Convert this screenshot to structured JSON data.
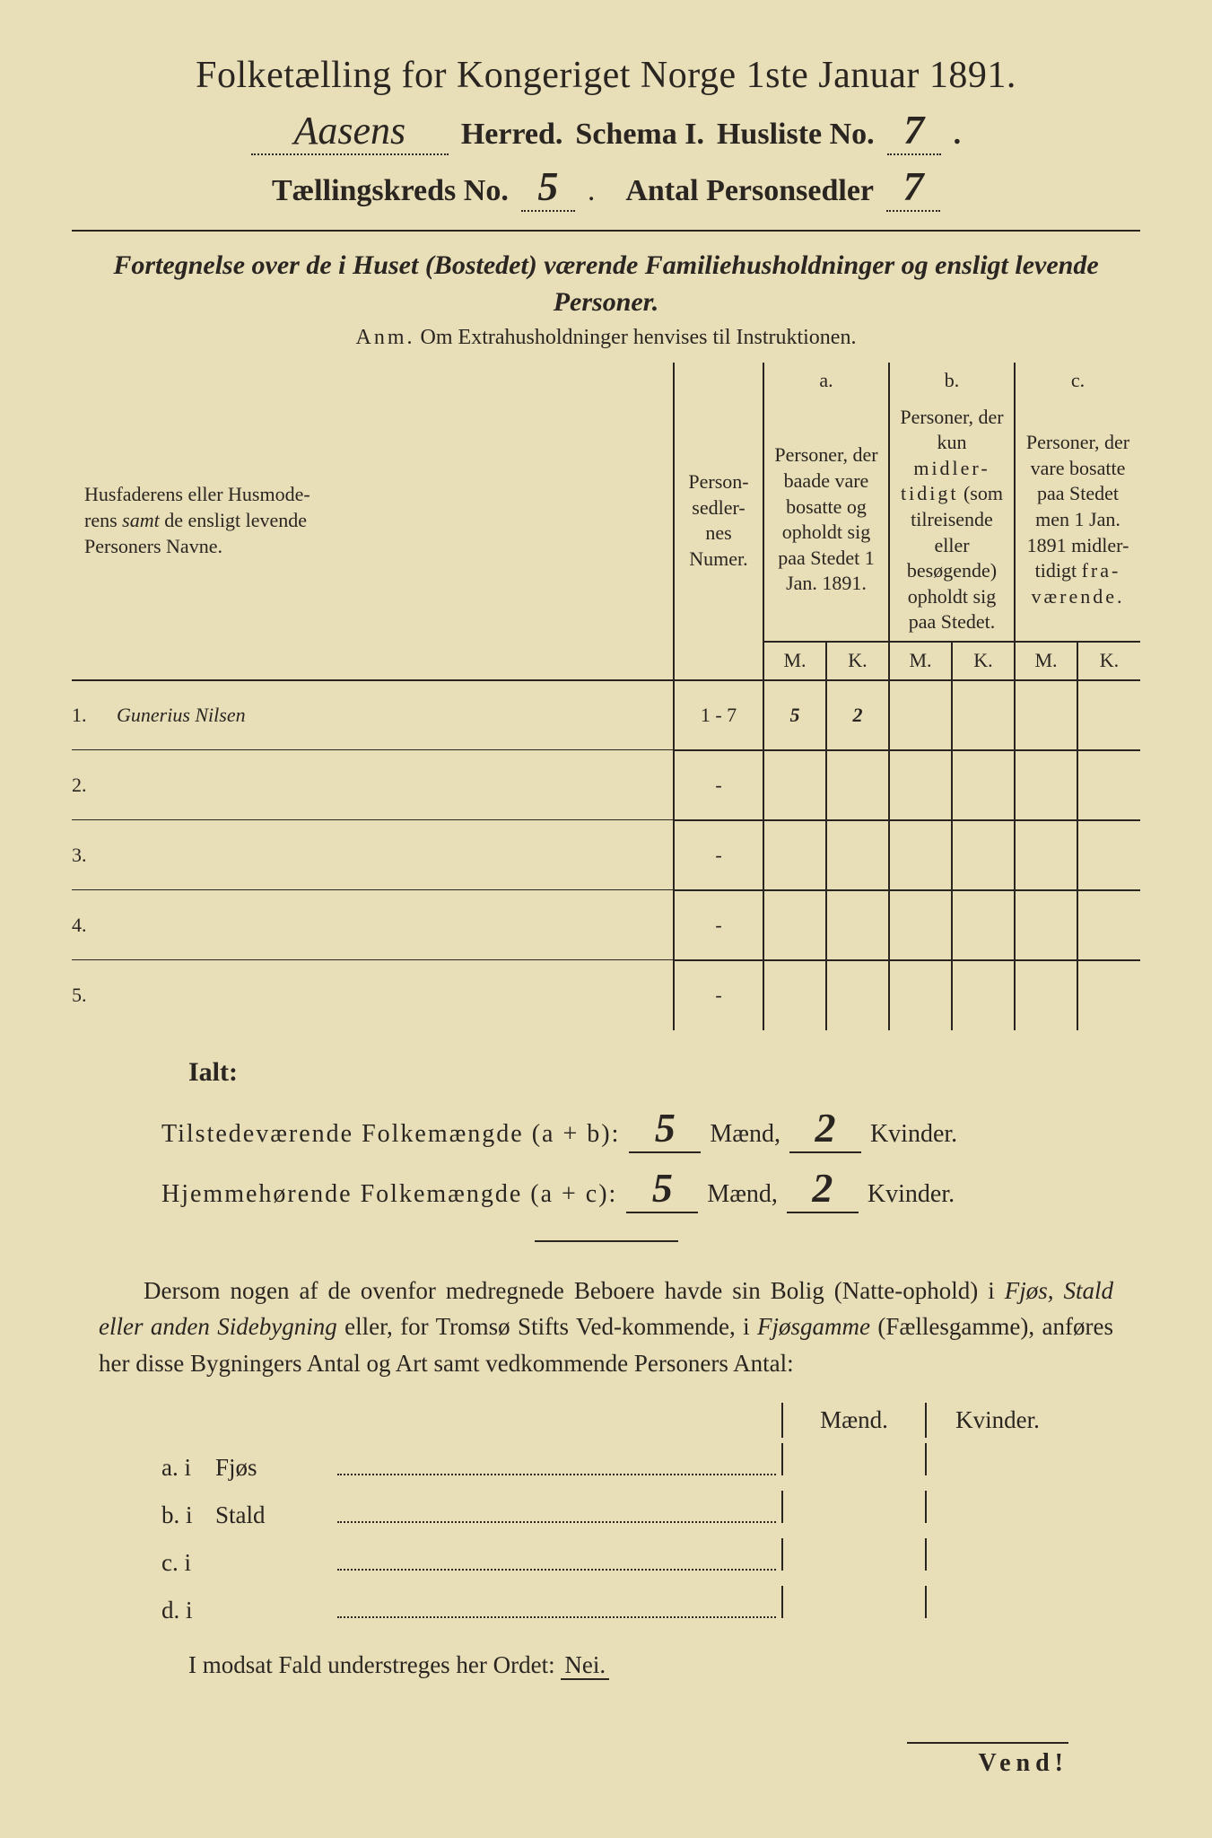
{
  "colors": {
    "paper": "#e8dfb8",
    "ink": "#2a2520",
    "frame": "#1a1a1a"
  },
  "header": {
    "title": "Folketælling for Kongeriget Norge 1ste Januar 1891.",
    "herred_hand": "Aasens",
    "herred_label": "Herred.",
    "schema_label": "Schema I.",
    "husliste_label": "Husliste No.",
    "husliste_no": "7",
    "kreds_label": "Tællingskreds No.",
    "kreds_no": "5",
    "antal_label": "Antal Personsedler",
    "antal_val": "7"
  },
  "subtitle": {
    "line": "Fortegnelse over de i Huset (Bostedet) værende Familiehusholdninger og ensligt levende Personer.",
    "anm_label": "Anm.",
    "anm_text": "Om Extrahusholdninger henvises til Instruktionen."
  },
  "table": {
    "col_name": "Husfaderens eller Husmoderens samt de ensligt levende Personers Navne.",
    "col_numer": "Person-sedler-nes Numer.",
    "col_a_label": "a.",
    "col_a": "Personer, der baade vare bosatte og opholdt sig paa Stedet 1 Jan. 1891.",
    "col_b_label": "b.",
    "col_b": "Personer, der kun midlertidigt (som tilreisende eller besøgende) opholdt sig paa Stedet.",
    "col_c_label": "c.",
    "col_c": "Personer, der vare bosatte paa Stedet men 1 Jan. 1891 midlertidigt fraværende.",
    "m": "M.",
    "k": "K.",
    "rows": [
      {
        "n": "1.",
        "name": "Gunerius Nilsen",
        "numer": "1 - 7",
        "a_m": "5",
        "a_k": "2",
        "b_m": "",
        "b_k": "",
        "c_m": "",
        "c_k": ""
      },
      {
        "n": "2.",
        "name": "",
        "numer": "-",
        "a_m": "",
        "a_k": "",
        "b_m": "",
        "b_k": "",
        "c_m": "",
        "c_k": ""
      },
      {
        "n": "3.",
        "name": "",
        "numer": "-",
        "a_m": "",
        "a_k": "",
        "b_m": "",
        "b_k": "",
        "c_m": "",
        "c_k": ""
      },
      {
        "n": "4.",
        "name": "",
        "numer": "-",
        "a_m": "",
        "a_k": "",
        "b_m": "",
        "b_k": "",
        "c_m": "",
        "c_k": ""
      },
      {
        "n": "5.",
        "name": "",
        "numer": "-",
        "a_m": "",
        "a_k": "",
        "b_m": "",
        "b_k": "",
        "c_m": "",
        "c_k": ""
      }
    ]
  },
  "totals": {
    "ialt": "Ialt:",
    "present_label": "Tilstedeværende Folkemængde (a + b):",
    "resident_label": "Hjemmehørende Folkemængde (a + c):",
    "maend": "Mænd,",
    "kvinder": "Kvinder.",
    "present_m": "5",
    "present_k": "2",
    "resident_m": "5",
    "resident_k": "2"
  },
  "para": "Dersom nogen af de ovenfor medregnede Beboere havde sin Bolig (Natteophold) i Fjøs, Stald eller anden Sidebygning eller, for Tromsø Stifts Vedkommende, i Fjøsgamme (Fællesgamme), anføres her disse Bygningers Antal og Art samt vedkommende Personers Antal:",
  "dwelling": {
    "maend": "Mænd.",
    "kvinder": "Kvinder.",
    "rows": [
      {
        "lbl": "a.  i",
        "type": "Fjøs"
      },
      {
        "lbl": "b.  i",
        "type": "Stald"
      },
      {
        "lbl": "c.  i",
        "type": ""
      },
      {
        "lbl": "d.  i",
        "type": ""
      }
    ]
  },
  "nei": {
    "text": "I modsat Fald understreges her Ordet:",
    "word": "Nei."
  },
  "vend": "Vend!"
}
